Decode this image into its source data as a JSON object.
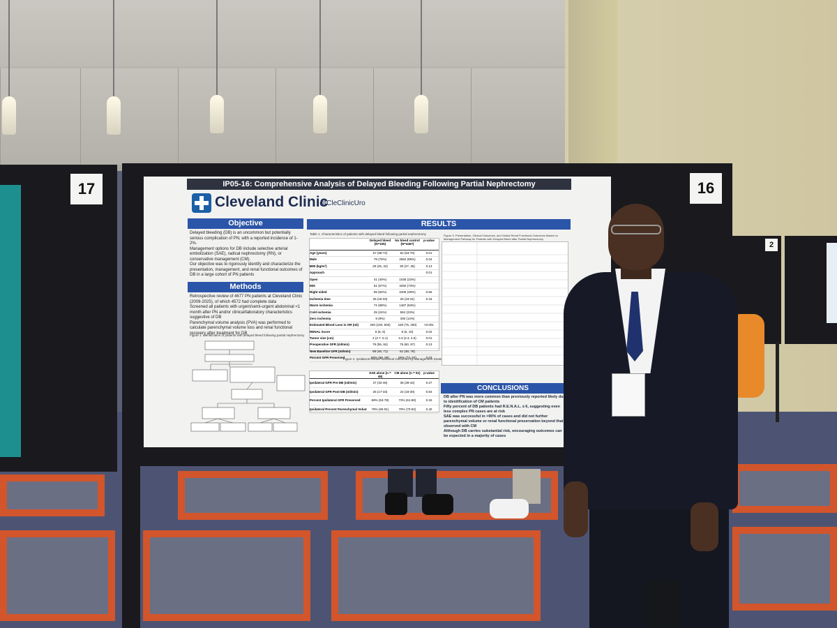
{
  "board_numbers": {
    "left": "17",
    "center": "16",
    "right": "2"
  },
  "poster": {
    "title": "IP05-16: Comprehensive Analysis of Delayed Bleeding Following Partial Nephrectomy",
    "institution": "Cleveland Clinic",
    "handle": "@CleClinicUro",
    "objective_heading": "Objective",
    "objective_bullets": [
      "Delayed bleeding (DB) is an uncommon but potentially serious complication of PN, with a reported incidence of 1-2%.",
      "Management options for DB include selective arterial embolization (SAE), radical nephrectomy (RN), or conservative management (CM).",
      "Our objective was to rigorously identify and characterize the presentation, management, and renal functional outcomes of DB in a large cohort of PN patients"
    ],
    "methods_heading": "Methods",
    "methods_bullets": [
      "Retrospective review of 4677 PN patients at Cleveland Clinic (2009-2025), of which 4572 had complete data",
      "Screened all patients with urgent/semi-urgent abdominal <1 month after PN and/or clinical/laboratory characteristics suggestive of DB",
      "Parenchymal volume analysis (PVA) was performed to calculate parenchymal volume loss and renal functional recovery after treatment for DB"
    ],
    "figure1_caption": "Figure 1. Identification of patients with delayed bleed following partial nephrectomy",
    "results_heading": "RESULTS",
    "table1_caption": "Table 1. Characteristics of patients with delayed bleed following partial nephrectomy",
    "table1_headers": [
      "",
      "Delayed bleed (N=105)",
      "No bleed control (N=4467)",
      "p-value"
    ],
    "table1_rows": [
      [
        "Age (years)",
        "67 (58-72)",
        "62 (53-70)",
        "0.01"
      ],
      [
        "Male",
        "79 (75%)",
        "2652 (59%)",
        "0.04"
      ],
      [
        "BMI (kg/m²)",
        "29 (26, 34)",
        "30 (27, 35)",
        "0.13"
      ],
      [
        "Approach",
        "",
        "",
        "0.01"
      ],
      [
        "Open",
        "41 (40%)",
        "1035 (23%)",
        ""
      ],
      [
        "MIS",
        "61 (57%)",
        "3250 (73%)",
        ""
      ],
      [
        "Right sided",
        "55 (52%)",
        "2209 (49%)",
        "0.55"
      ],
      [
        "Ischemia time",
        "26 (19-33)",
        "25 (19-31)",
        "0.18"
      ],
      [
        "Warm ischemia",
        "71 (68%)",
        "1487 (63%)",
        ""
      ],
      [
        "Cold ischemia",
        "25 (24%)",
        "552 (23%)",
        ""
      ],
      [
        "Zero ischemia",
        "9 (9%)",
        "330 (14%)",
        ""
      ],
      [
        "Estimated Blood Loss in OR (ml)",
        "200 (100, 500)",
        "150 (75, 250)",
        "<0.001"
      ],
      [
        "RENAL Score",
        "8 (5, 9)",
        "8 (6, 10)",
        "0.02"
      ],
      [
        "Tumor size (cm)",
        "4 (2.7, 5.1)",
        "3.3 (2.3, 4.5)",
        "0.01"
      ],
      [
        "Preoperative GFR (ml/min)",
        "79 (55, 84)",
        "75 (60, 87)",
        "0.13"
      ],
      [
        "New Baseline GFR (ml/min)",
        "58 (48, 71)",
        "61 (48, 76)",
        ""
      ],
      [
        "Percent GFR Preserved",
        "80% (69, 89)",
        "85% (73, 97)",
        "0.03"
      ]
    ],
    "table2_caption": "Figure 2. Ipsilateral Renal Functional Outcomes by Management Strategy",
    "table2_headers": [
      "",
      "SAE alone (n = 49)",
      "CM alone (n = 51)",
      "p-value"
    ],
    "table2_rows": [
      [
        "Ipsilateral GFR Pre-DB (ml/min)",
        "37 (32-46)",
        "36 (28-42)",
        "0.27"
      ],
      [
        "Ipsilateral GFR Post-DB (ml/min)",
        "25 (17-33)",
        "24 (18-30)",
        "0.84"
      ],
      [
        "Percent Ipsilateral GFR Preserved",
        "69% (53-78)",
        "73% (61-80)",
        "0.15"
      ],
      [
        "Ipsilateral Percent Parenchymal Volume Preserved",
        "79% (65-91)",
        "79% (70-92)",
        "0.40"
      ]
    ],
    "table3_caption": "Figure 3. Presentation, Clinical Outcomes, and Global Renal Functional Outcomes Based on Management Pathway for Patients with Delayed Bleed after Partial Nephrectomy",
    "conclusions_heading": "CONCLUSIONS",
    "conclusions_bullets": [
      "DB after PN was more common than previously reported likely due to identification of CM patients",
      "Fifty percent of DB patients had R.E.N.A.L. ≤ 6, suggesting even less complex PN cases are at risk",
      "SAE was successful in >90% of cases and did not further parenchymal volume or renal functional preservation beyond that observed with CM",
      "Although DB carries substantial risk, encouraging outcomes can be expected in a majority of cases"
    ]
  },
  "colors": {
    "poster_header_blue": "#2b55a8",
    "carpet_orange": "#d2552c",
    "carpet_blue": "#4d5473"
  }
}
